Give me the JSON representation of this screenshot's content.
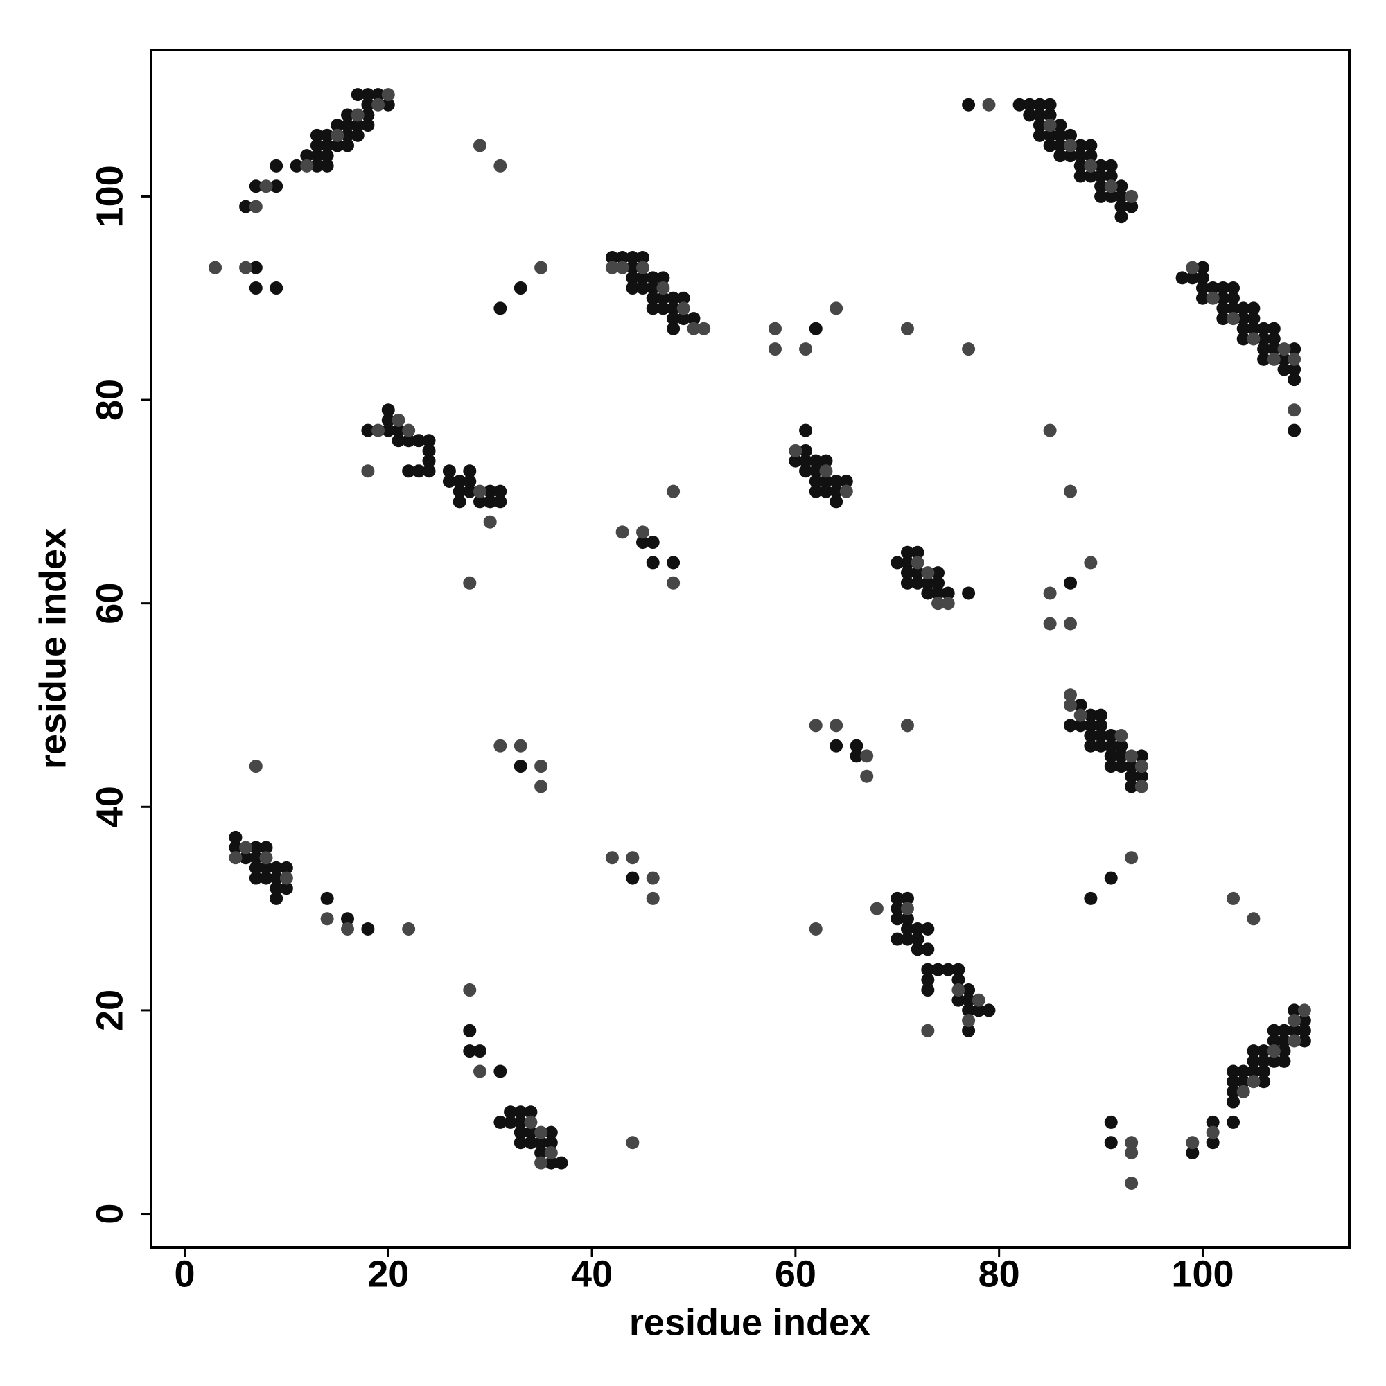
{
  "chart_data": {
    "type": "scatter",
    "xlabel": "residue index",
    "ylabel": "residue index",
    "xlim": [
      -3.3,
      114.4
    ],
    "ylim": [
      -3.3,
      114.4
    ],
    "xticks": [
      0,
      20,
      40,
      60,
      80,
      100
    ],
    "yticks": [
      0,
      20,
      40,
      60,
      80,
      100
    ],
    "grid": false,
    "series": [
      {
        "color": "#111111",
        "x": [
          6,
          7,
          9,
          9,
          11,
          12,
          13,
          13,
          13,
          13,
          14,
          14,
          14,
          14,
          15,
          15,
          16,
          16,
          16,
          16,
          17,
          17,
          18,
          18,
          18,
          17,
          18,
          19,
          20,
          7,
          7,
          9,
          33,
          31,
          42,
          43,
          44,
          44,
          44,
          44,
          45,
          45,
          45,
          46,
          46,
          46,
          46,
          47,
          47,
          47,
          48,
          48,
          48,
          48,
          49,
          49,
          50,
          62,
          77,
          82,
          83,
          83,
          84,
          84,
          84,
          84,
          85,
          85,
          85,
          85,
          86,
          86,
          86,
          86,
          87,
          87,
          88,
          88,
          88,
          88,
          89,
          89,
          89,
          90,
          90,
          90,
          90,
          91,
          91,
          91,
          92,
          92,
          92,
          92,
          93,
          98,
          99,
          100,
          100,
          100,
          100,
          101,
          102,
          102,
          102,
          102,
          103,
          103,
          103,
          104,
          104,
          104,
          104,
          105,
          105,
          105,
          106,
          106,
          106,
          106,
          107,
          107,
          107,
          108,
          108,
          109,
          109,
          109,
          109,
          18,
          20,
          20,
          20,
          21,
          21,
          22,
          22,
          23,
          23,
          24,
          24,
          24,
          24,
          26,
          26,
          27,
          27,
          27,
          28,
          28,
          28,
          29,
          30,
          30,
          31,
          31,
          45,
          46,
          46,
          48,
          60,
          61,
          61,
          61,
          61,
          62,
          62,
          62,
          62,
          63,
          63,
          63,
          64,
          64,
          64,
          65,
          70,
          71,
          71,
          71,
          71,
          72,
          72,
          72,
          73,
          73,
          74,
          74,
          74,
          75,
          77,
          87,
          87,
          88,
          88,
          89,
          89,
          89,
          89,
          90,
          90,
          90,
          90,
          91,
          91,
          91,
          91,
          92,
          92,
          92,
          93,
          93,
          93,
          94,
          94,
          64,
          66,
          66,
          33,
          5,
          5,
          6,
          7,
          7,
          7,
          7,
          8,
          8,
          8,
          9,
          9,
          9,
          9,
          10,
          10,
          14,
          16,
          18,
          44,
          91,
          89,
          70,
          70,
          70,
          70,
          71,
          71,
          71,
          71,
          72,
          72,
          72,
          73,
          73,
          73,
          73,
          73,
          74,
          75,
          76,
          76,
          76,
          77,
          77,
          77,
          77,
          78,
          79,
          28,
          28,
          29,
          31,
          31,
          32,
          32,
          33,
          33,
          33,
          33,
          34,
          34,
          34,
          35,
          35,
          36,
          36,
          36,
          37,
          91,
          91,
          99,
          101,
          101,
          103,
          103,
          103,
          103,
          103,
          104,
          104,
          105,
          105,
          105,
          106,
          106,
          106,
          106,
          107,
          107,
          107,
          108,
          108,
          108,
          108,
          109,
          109,
          110,
          110,
          110
        ],
        "values": [
          99,
          101,
          101,
          103,
          103,
          104,
          103,
          104,
          105,
          106,
          103,
          104,
          105,
          106,
          105,
          107,
          105,
          106,
          107,
          108,
          106,
          107,
          107,
          108,
          109,
          110,
          110,
          110,
          109,
          93,
          91,
          91,
          91,
          89,
          94,
          94,
          94,
          93,
          92,
          91,
          94,
          92,
          91,
          92,
          91,
          90,
          89,
          92,
          90,
          89,
          90,
          89,
          88,
          87,
          90,
          88,
          88,
          87,
          109,
          109,
          109,
          108,
          109,
          108,
          107,
          106,
          109,
          108,
          106,
          105,
          107,
          106,
          105,
          104,
          106,
          104,
          105,
          104,
          103,
          102,
          105,
          104,
          102,
          103,
          102,
          101,
          100,
          103,
          102,
          100,
          101,
          100,
          99,
          98,
          99,
          92,
          92,
          93,
          92,
          91,
          90,
          91,
          91,
          90,
          89,
          88,
          91,
          90,
          89,
          89,
          88,
          87,
          86,
          89,
          88,
          87,
          87,
          86,
          85,
          84,
          87,
          86,
          85,
          84,
          83,
          85,
          83,
          82,
          77,
          77,
          79,
          78,
          77,
          77,
          76,
          76,
          73,
          76,
          73,
          76,
          75,
          74,
          73,
          73,
          72,
          72,
          71,
          70,
          73,
          72,
          71,
          70,
          71,
          70,
          71,
          70,
          66,
          66,
          64,
          64,
          74,
          77,
          75,
          74,
          73,
          74,
          73,
          72,
          71,
          74,
          72,
          71,
          72,
          71,
          70,
          72,
          64,
          65,
          64,
          63,
          62,
          65,
          63,
          62,
          62,
          61,
          63,
          62,
          61,
          61,
          61,
          62,
          48,
          50,
          48,
          49,
          48,
          47,
          46,
          49,
          48,
          47,
          46,
          47,
          46,
          45,
          44,
          46,
          45,
          44,
          44,
          43,
          42,
          45,
          43,
          46,
          46,
          45,
          44,
          37,
          36,
          35,
          36,
          35,
          34,
          33,
          36,
          34,
          33,
          34,
          33,
          32,
          31,
          34,
          32,
          31,
          29,
          28,
          33,
          33,
          31,
          31,
          30,
          29,
          27,
          31,
          29,
          28,
          27,
          28,
          27,
          26,
          28,
          26,
          24,
          23,
          22,
          24,
          24,
          24,
          23,
          21,
          22,
          21,
          20,
          18,
          20,
          20,
          18,
          16,
          16,
          14,
          9,
          10,
          9,
          10,
          9,
          8,
          7,
          10,
          8,
          7,
          7,
          6,
          8,
          7,
          5,
          5,
          9,
          7,
          6,
          9,
          7,
          14,
          13,
          12,
          11,
          9,
          14,
          13,
          16,
          15,
          14,
          16,
          15,
          14,
          13,
          18,
          17,
          15,
          18,
          17,
          16,
          15,
          20,
          18,
          19,
          18,
          17
        ]
      },
      {
        "color": "#474747",
        "x": [
          7,
          8,
          12,
          15,
          17,
          19,
          20,
          3,
          6,
          29,
          31,
          35,
          42,
          43,
          45,
          47,
          49,
          50,
          51,
          58,
          58,
          61,
          64,
          71,
          77,
          79,
          85,
          87,
          89,
          91,
          93,
          99,
          101,
          103,
          105,
          107,
          108,
          109,
          109,
          18,
          19,
          21,
          22,
          29,
          30,
          28,
          48,
          43,
          45,
          48,
          60,
          63,
          65,
          72,
          73,
          74,
          75,
          85,
          87,
          89,
          85,
          85,
          87,
          87,
          87,
          88,
          92,
          93,
          94,
          94,
          62,
          64,
          67,
          67,
          71,
          31,
          33,
          35,
          35,
          7,
          5,
          6,
          8,
          10,
          14,
          16,
          22,
          42,
          44,
          46,
          46,
          93,
          103,
          105,
          68,
          71,
          73,
          62,
          77,
          76,
          78,
          28,
          29,
          34,
          35,
          36,
          35,
          44,
          93,
          93,
          93,
          99,
          101,
          104,
          105,
          107,
          109,
          109,
          110
        ],
        "values": [
          99,
          101,
          103,
          106,
          108,
          109,
          110,
          93,
          93,
          105,
          103,
          93,
          93,
          93,
          93,
          91,
          89,
          87,
          87,
          87,
          85,
          85,
          89,
          87,
          85,
          109,
          107,
          105,
          103,
          101,
          100,
          93,
          90,
          88,
          86,
          84,
          85,
          84,
          79,
          73,
          77,
          78,
          77,
          71,
          68,
          62,
          71,
          67,
          67,
          62,
          75,
          73,
          71,
          64,
          63,
          60,
          60,
          77,
          71,
          64,
          61,
          58,
          58,
          51,
          50,
          49,
          47,
          45,
          44,
          42,
          48,
          48,
          45,
          43,
          48,
          46,
          46,
          44,
          42,
          44,
          35,
          36,
          35,
          33,
          29,
          28,
          28,
          35,
          35,
          33,
          31,
          35,
          31,
          29,
          30,
          30,
          18,
          28,
          19,
          22,
          21,
          22,
          14,
          9,
          8,
          6,
          5,
          7,
          7,
          6,
          3,
          7,
          8,
          12,
          13,
          16,
          19,
          17,
          20
        ]
      }
    ]
  }
}
